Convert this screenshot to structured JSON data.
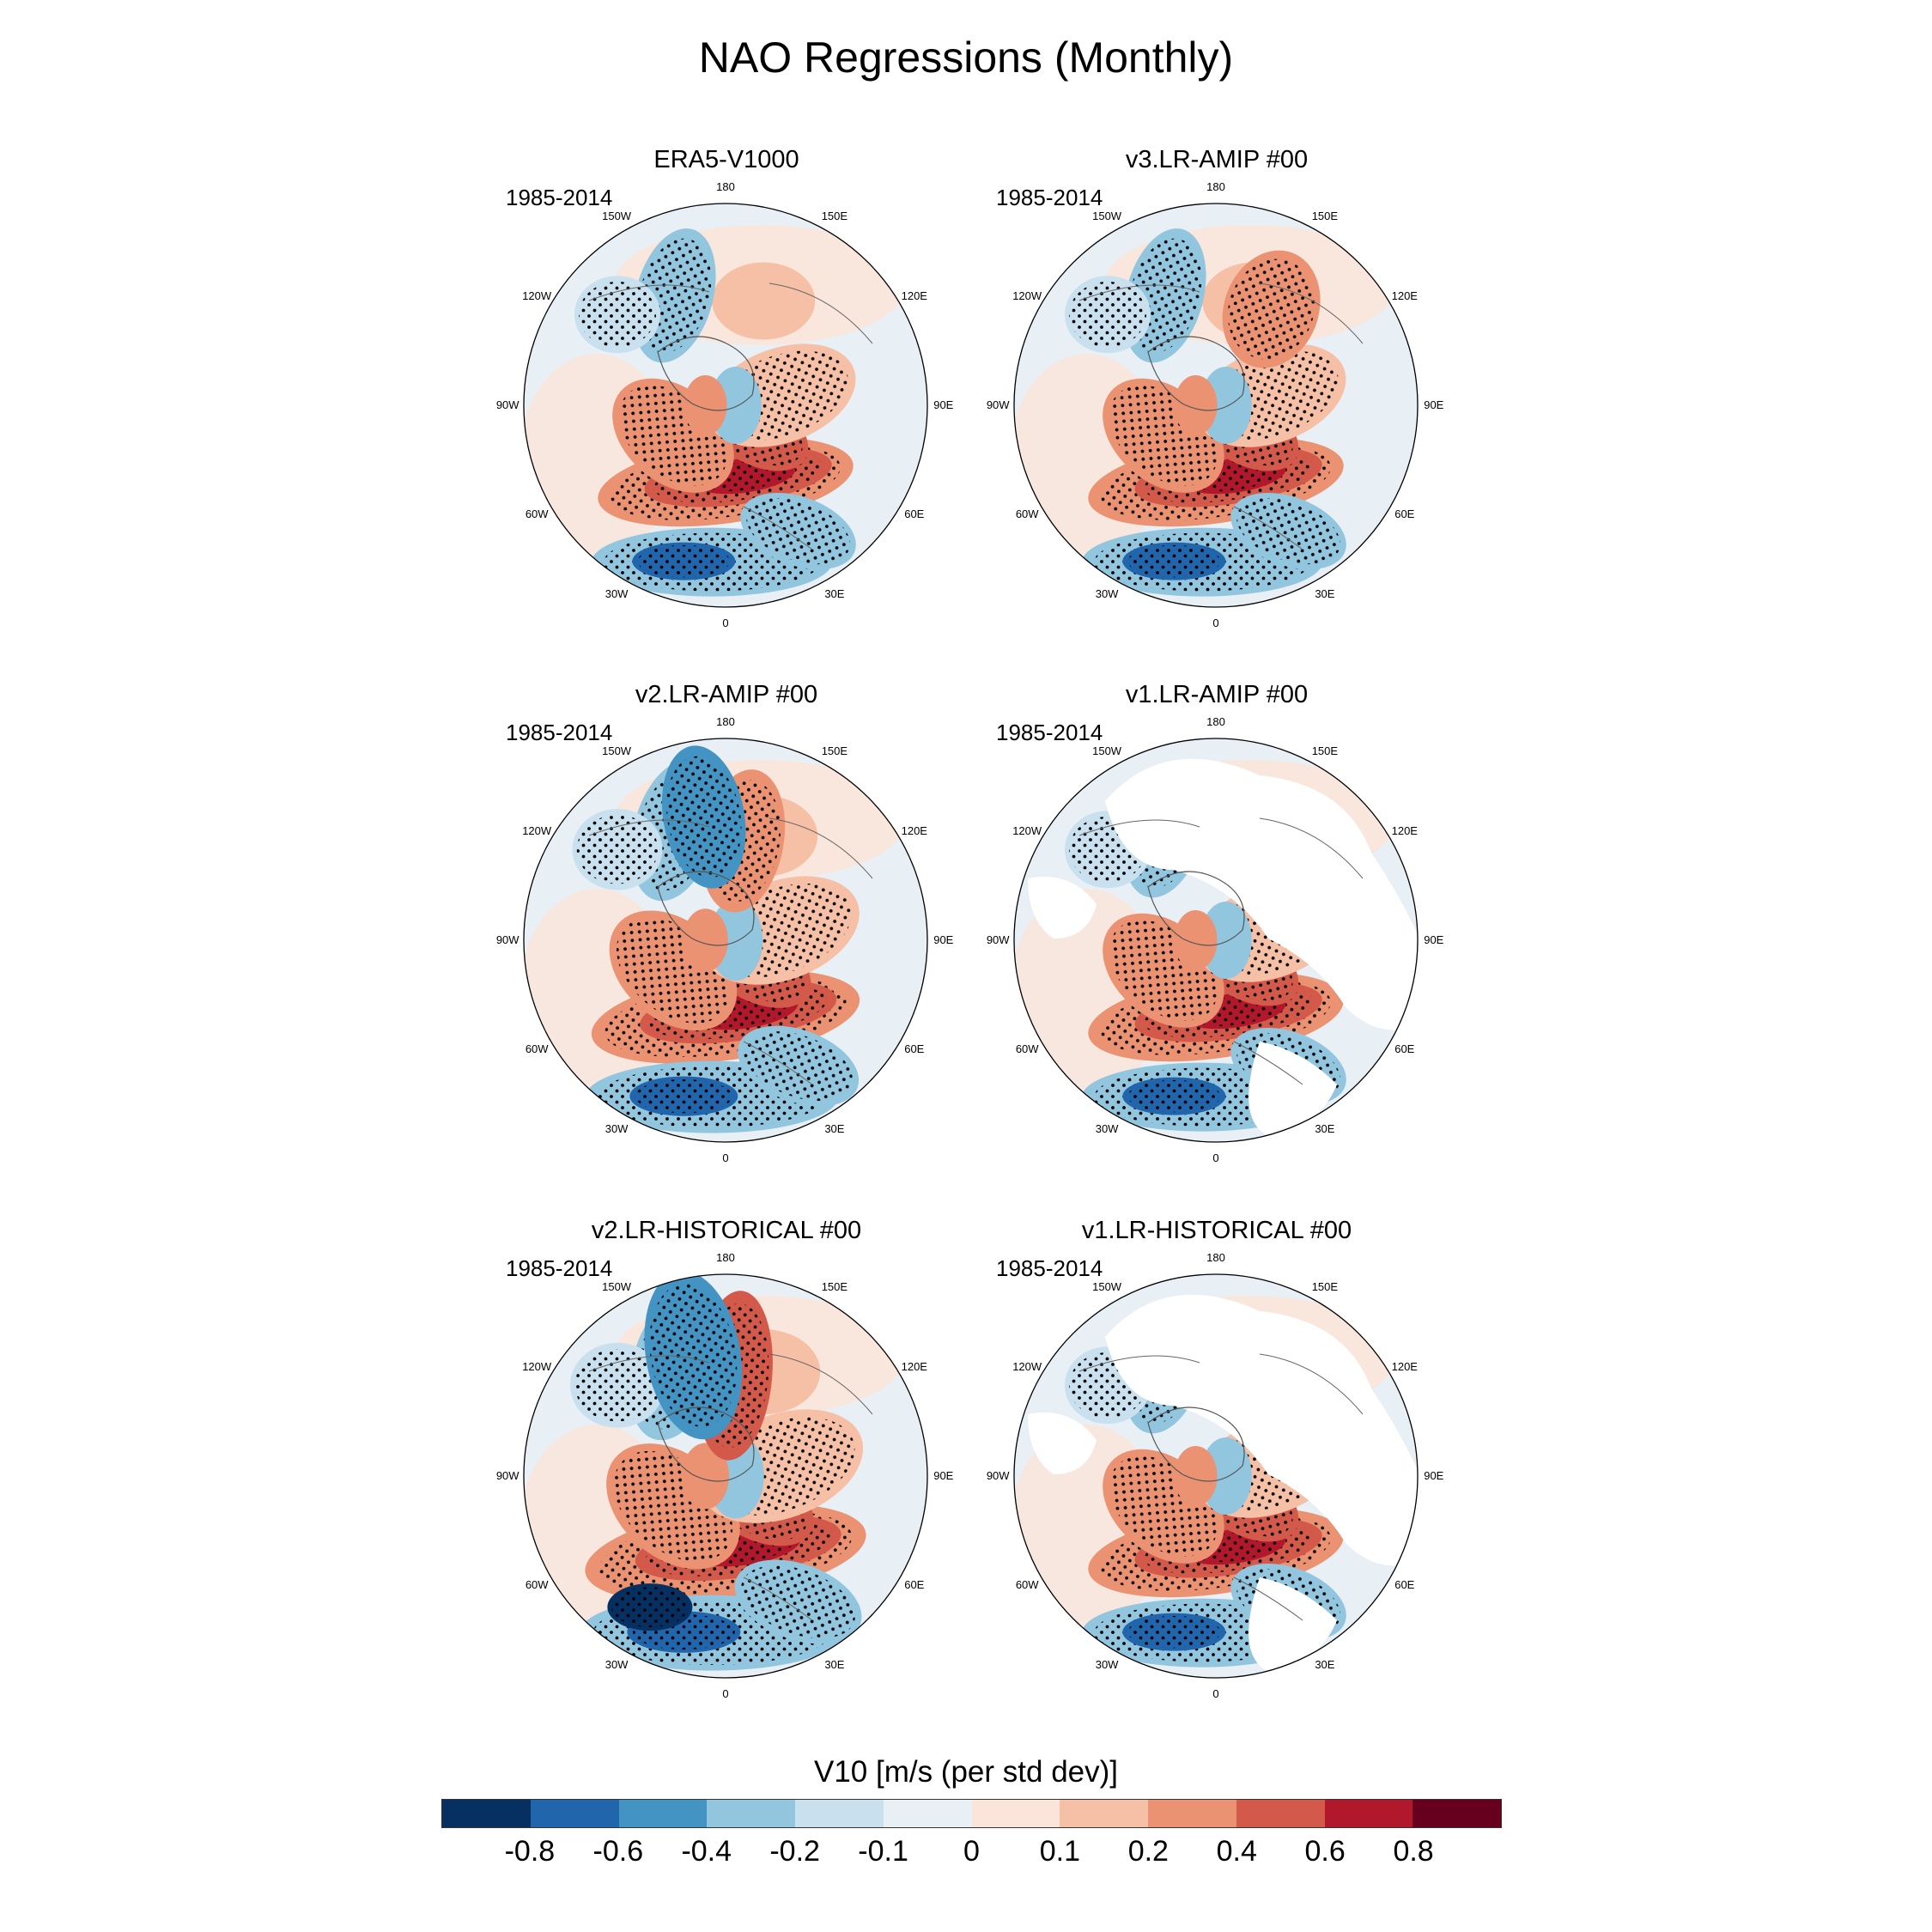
{
  "title": "NAO Regressions (Monthly)",
  "panels": [
    {
      "title": "ERA5-V1000",
      "period": "1985-2014",
      "masked": false
    },
    {
      "title": "v3.LR-AMIP  #00",
      "period": "1985-2014",
      "masked": false
    },
    {
      "title": "v2.LR-AMIP  #00",
      "period": "1985-2014",
      "masked": false
    },
    {
      "title": "v1.LR-AMIP  #00",
      "period": "1985-2014",
      "masked": true
    },
    {
      "title": "v2.LR-HISTORICAL  #00",
      "period": "1985-2014",
      "masked": false
    },
    {
      "title": "v1.LR-HISTORICAL  #00",
      "period": "1985-2014",
      "masked": true
    }
  ],
  "longitude_labels": [
    "180",
    "150E",
    "120E",
    "90E",
    "60E",
    "30E",
    "0",
    "30W",
    "60W",
    "90W",
    "120W",
    "150W"
  ],
  "colorbar": {
    "title": "V10 [m/s (per std dev)]",
    "tick_labels": [
      "-0.8",
      "-0.6",
      "-0.4",
      "-0.2",
      "-0.1",
      "0",
      "0.1",
      "0.2",
      "0.4",
      "0.6",
      "0.8"
    ],
    "colors": [
      "#053061",
      "#2166ac",
      "#4393c3",
      "#92c5de",
      "#c9e0ee",
      "#e8eff5",
      "#fbe5da",
      "#f6c0a6",
      "#ea9272",
      "#d35a4a",
      "#b2182b",
      "#67001f"
    ]
  }
}
